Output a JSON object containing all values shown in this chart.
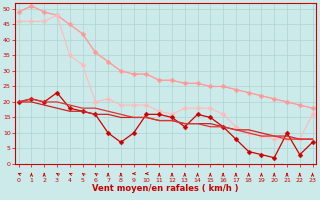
{
  "xlabel": "Vent moyen/en rafales ( km/h )",
  "background_color": "#cceaea",
  "grid_color": "#aad4d4",
  "x_values": [
    0,
    1,
    2,
    3,
    4,
    5,
    6,
    7,
    8,
    9,
    10,
    11,
    12,
    13,
    14,
    15,
    16,
    17,
    18,
    19,
    20,
    21,
    22,
    23
  ],
  "series": [
    {
      "y": [
        49,
        51,
        49,
        48,
        45,
        42,
        36,
        33,
        30,
        29,
        29,
        27,
        27,
        26,
        26,
        25,
        25,
        24,
        23,
        22,
        21,
        20,
        19,
        18
      ],
      "color": "#ffaaaa",
      "linewidth": 0.8,
      "marker": null,
      "markersize": 0
    },
    {
      "y": [
        49,
        51,
        49,
        48,
        45,
        42,
        36,
        33,
        30,
        29,
        29,
        27,
        27,
        26,
        26,
        25,
        25,
        24,
        23,
        22,
        21,
        20,
        19,
        18
      ],
      "color": "#ff9999",
      "linewidth": 0.8,
      "marker": "D",
      "markersize": 2.5
    },
    {
      "y": [
        46,
        46,
        46,
        48,
        35,
        32,
        20,
        21,
        19,
        19,
        19,
        17,
        16,
        18,
        18,
        18,
        16,
        12,
        10,
        9,
        8,
        8,
        8,
        16
      ],
      "color": "#ffbbbb",
      "linewidth": 0.8,
      "marker": "D",
      "markersize": 2.5
    },
    {
      "y": [
        20,
        21,
        20,
        23,
        18,
        17,
        16,
        10,
        7,
        10,
        16,
        16,
        15,
        12,
        16,
        15,
        12,
        8,
        4,
        3,
        2,
        10,
        3,
        7
      ],
      "color": "#cc0000",
      "linewidth": 0.9,
      "marker": "D",
      "markersize": 2.5
    },
    {
      "y": [
        20,
        20,
        19,
        18,
        17,
        17,
        16,
        16,
        15,
        15,
        15,
        14,
        14,
        13,
        13,
        13,
        12,
        11,
        11,
        10,
        9,
        9,
        8,
        8
      ],
      "color": "#cc2222",
      "linewidth": 0.9,
      "marker": null,
      "markersize": 0
    },
    {
      "y": [
        20,
        21,
        20,
        20,
        19,
        18,
        18,
        17,
        16,
        15,
        15,
        14,
        14,
        13,
        13,
        12,
        12,
        11,
        10,
        9,
        9,
        8,
        8,
        8
      ],
      "color": "#dd3333",
      "linewidth": 0.9,
      "marker": null,
      "markersize": 0
    }
  ],
  "ylim": [
    0,
    52
  ],
  "xlim": [
    -0.3,
    23.3
  ],
  "yticks": [
    0,
    5,
    10,
    15,
    20,
    25,
    30,
    35,
    40,
    45,
    50
  ],
  "wind_directions": [
    225,
    180,
    180,
    210,
    225,
    210,
    210,
    180,
    180,
    270,
    270,
    180,
    180,
    180,
    180,
    180,
    180,
    180,
    180,
    180,
    180,
    180,
    180,
    180
  ],
  "arrow_color": "#cc0000",
  "tick_label_color": "#cc0000",
  "axis_label_color": "#cc0000",
  "spine_color": "#cc0000"
}
